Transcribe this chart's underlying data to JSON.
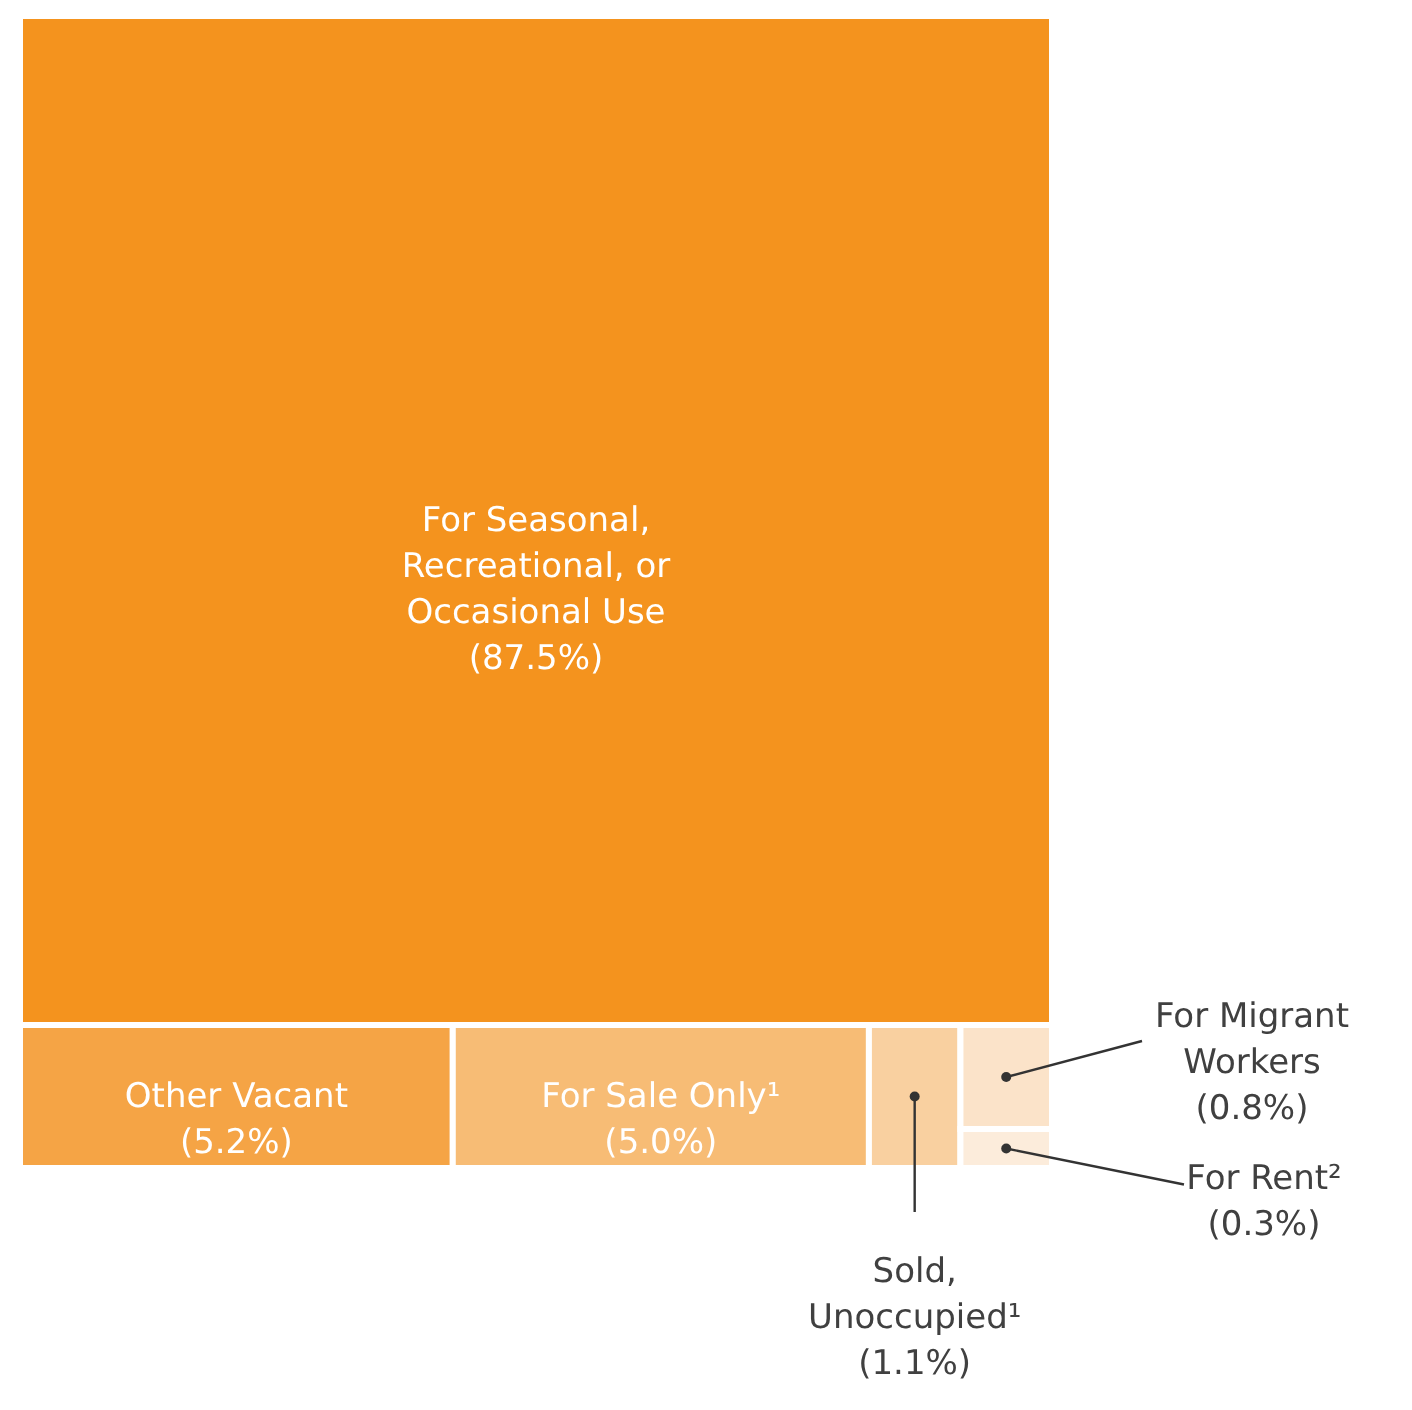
{
  "chart_data": {
    "type": "other",
    "categories": [
      "For Seasonal, Recreational, or Occasional Use",
      "Other Vacant",
      "For Sale Only¹",
      "Sold, Unoccupied¹",
      "For Migrant Workers",
      "For Rent²"
    ],
    "values": [
      87.5,
      5.2,
      5.0,
      1.1,
      0.8,
      0.3
    ],
    "value_labels": [
      "(87.5%)",
      "(5.2%)",
      "(5.0%)",
      "(1.1%)",
      "(0.8%)",
      "(0.3%)"
    ],
    "colors": [
      "#f4931e",
      "#f5a445",
      "#f7bc75",
      "#f9d0a0",
      "#fbe3c9",
      "#fcecdb"
    ]
  }
}
